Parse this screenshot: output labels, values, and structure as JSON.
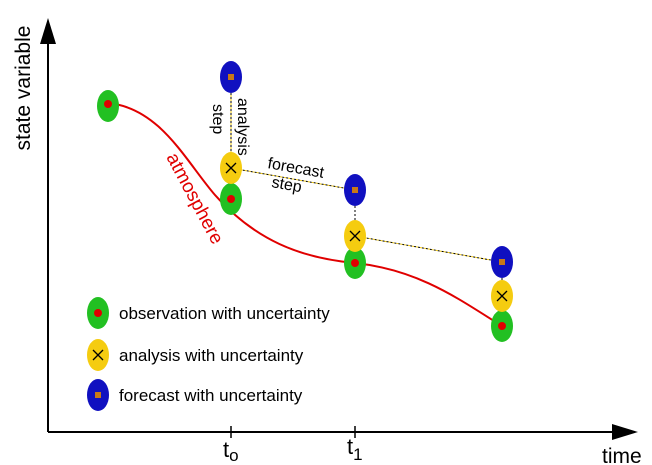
{
  "axes": {
    "y_label": "state variable",
    "x_label": "time",
    "ticks": [
      {
        "main": "t",
        "sub": "o"
      },
      {
        "main": "t",
        "sub": "1"
      }
    ]
  },
  "labels": {
    "atmosphere": "atmosphere",
    "analysis_step_line1": "analysis",
    "analysis_step_line2": "step",
    "forecast_step_line1": "forecast",
    "forecast_step_line2": "step"
  },
  "legend": [
    {
      "kind": "observation",
      "label": "observation with uncertainty"
    },
    {
      "kind": "analysis",
      "label": "analysis with uncertainty"
    },
    {
      "kind": "forecast",
      "label": "forecast with uncertainty"
    }
  ],
  "colors": {
    "observation": "#22c022",
    "analysis": "#f5cc10",
    "forecast": "#1010c0",
    "atmosphere_curve": "#e00000",
    "dot": "#e00000",
    "square": "#c87818",
    "axis": "#000000"
  }
}
